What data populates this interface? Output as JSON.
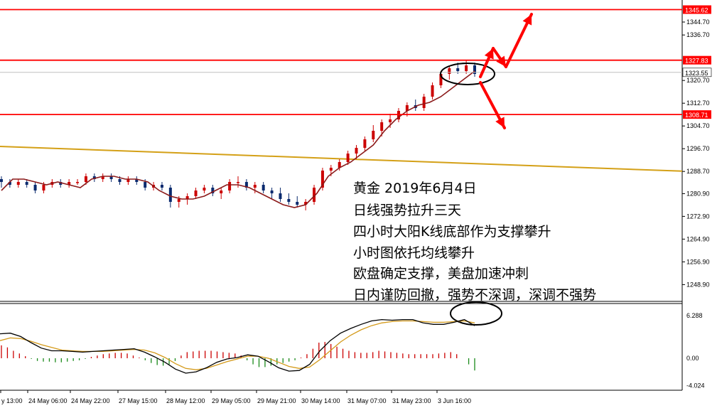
{
  "chart_data": [
    {
      "type": "candlestick",
      "instrument": "Gold",
      "ylim": [
        1244.8,
        1354.0
      ],
      "price_ticks": [
        "1336.70",
        "1320.70",
        "1312.70",
        "1304.70",
        "1296.70",
        "1288.70",
        "1280.90",
        "1272.90",
        "1264.90",
        "1256.90",
        "1248.90"
      ],
      "price_ticks_short": [
        "1344.70"
      ],
      "horizontal_levels": [
        {
          "label": "1345.62",
          "value": 1345.62,
          "color": "#ff0000"
        },
        {
          "label": "1327.83",
          "value": 1327.83,
          "color": "#ff0000"
        },
        {
          "label": "1308.71",
          "value": 1308.71,
          "color": "#ff0000"
        }
      ],
      "current_price": {
        "label": "1323.55",
        "value": 1323.55
      },
      "moving_averages": [
        {
          "role": "short",
          "color": "#8b1a1a",
          "values": [
            1282,
            1286,
            1286,
            1285,
            1284,
            1285,
            1284,
            1283,
            1286,
            1287,
            1287,
            1286,
            1286,
            1285,
            1282,
            1280,
            1279,
            1279,
            1280,
            1282,
            1284,
            1284,
            1283,
            1281,
            1279,
            1277,
            1276,
            1277,
            1281,
            1287,
            1290,
            1292,
            1295,
            1298,
            1303,
            1307,
            1310,
            1312,
            1313,
            1315,
            1318,
            1321,
            1324
          ]
        },
        {
          "role": "long",
          "color": "#d4a017",
          "values": [
            1297.5,
            1288.8
          ]
        }
      ],
      "candles": [
        [
          1286,
          1287,
          1283,
          1285
        ],
        [
          1285,
          1286,
          1283,
          1284
        ],
        [
          1284,
          1286,
          1283,
          1285
        ],
        [
          1285,
          1286,
          1283,
          1284
        ],
        [
          1284,
          1285,
          1281,
          1282
        ],
        [
          1282,
          1285,
          1281,
          1284
        ],
        [
          1284,
          1286,
          1283,
          1285
        ],
        [
          1285,
          1286,
          1283,
          1284
        ],
        [
          1284,
          1286,
          1283,
          1285
        ],
        [
          1285,
          1286,
          1284,
          1285
        ],
        [
          1285,
          1288,
          1284,
          1287
        ],
        [
          1287,
          1288,
          1285,
          1286
        ],
        [
          1286,
          1288,
          1285,
          1287
        ],
        [
          1287,
          1288,
          1285,
          1286
        ],
        [
          1286,
          1287,
          1284,
          1285
        ],
        [
          1285,
          1287,
          1284,
          1286
        ],
        [
          1286,
          1287,
          1284,
          1285
        ],
        [
          1285,
          1286,
          1282,
          1283
        ],
        [
          1283,
          1285,
          1282,
          1284
        ],
        [
          1284,
          1285,
          1282,
          1283
        ],
        [
          1283,
          1284,
          1276,
          1278
        ],
        [
          1278,
          1280,
          1276,
          1279
        ],
        [
          1279,
          1281,
          1277,
          1280
        ],
        [
          1280,
          1283,
          1279,
          1282
        ],
        [
          1282,
          1284,
          1281,
          1283
        ],
        [
          1283,
          1284,
          1280,
          1281
        ],
        [
          1281,
          1283,
          1279,
          1282
        ],
        [
          1282,
          1286,
          1281,
          1285
        ],
        [
          1285,
          1287,
          1283,
          1285
        ],
        [
          1285,
          1286,
          1282,
          1283
        ],
        [
          1283,
          1285,
          1281,
          1284
        ],
        [
          1284,
          1285,
          1281,
          1282
        ],
        [
          1282,
          1283,
          1279,
          1281
        ],
        [
          1281,
          1283,
          1278,
          1279
        ],
        [
          1279,
          1281,
          1277,
          1278
        ],
        [
          1278,
          1280,
          1276,
          1277
        ],
        [
          1277,
          1279,
          1275,
          1278
        ],
        [
          1278,
          1284,
          1277,
          1283
        ],
        [
          1283,
          1290,
          1282,
          1289
        ],
        [
          1289,
          1291,
          1287,
          1290
        ],
        [
          1290,
          1293,
          1289,
          1292
        ],
        [
          1292,
          1296,
          1291,
          1295
        ],
        [
          1295,
          1298,
          1293,
          1297
        ],
        [
          1297,
          1301,
          1296,
          1300
        ],
        [
          1300,
          1305,
          1299,
          1303
        ],
        [
          1303,
          1307,
          1301,
          1306
        ],
        [
          1306,
          1309,
          1304,
          1307
        ],
        [
          1307,
          1311,
          1306,
          1310
        ],
        [
          1310,
          1313,
          1308,
          1312
        ],
        [
          1312,
          1314,
          1310,
          1311
        ],
        [
          1311,
          1316,
          1310,
          1315
        ],
        [
          1315,
          1320,
          1314,
          1319
        ],
        [
          1319,
          1324,
          1318,
          1323
        ],
        [
          1323,
          1326,
          1321,
          1325
        ],
        [
          1325,
          1327,
          1323,
          1324
        ],
        [
          1324,
          1328,
          1323,
          1326
        ],
        [
          1326,
          1327,
          1322,
          1323
        ]
      ],
      "annotations": [
        "黄金 2019年6月4日",
        "日线强势拉升三天",
        "四小时大阳K线底部作为支撑攀升",
        "小时图依托均线攀升",
        "欧盘确定支撑，美盘加速冲刺",
        "日内谨防回撤，强势不深调，深调不强势"
      ],
      "x_tick_labels": [
        "y 13:00",
        "24 May 06:00",
        "24 May 22:00",
        "27 May 15:00",
        "28 May 12:00",
        "29 May 05:00",
        "29 May 21:00",
        "30 May 14:00",
        "31 May 07:00",
        "31 May 23:00",
        "3 Jun 16:00"
      ]
    },
    {
      "type": "macd",
      "ylim": [
        -4.024,
        6.288
      ],
      "y_tick_labels": [
        "6.288",
        "0.00",
        "-4.024"
      ],
      "histogram": [
        1.9,
        1.6,
        1.1,
        0.7,
        0.3,
        -0.1,
        -0.4,
        -0.5,
        -0.5,
        -0.6,
        -0.6,
        -0.5,
        -0.4,
        -0.3,
        -0.1,
        0.2,
        0.4,
        0.6,
        0.7,
        0.8,
        0.8,
        0.7,
        0.4,
        0.1,
        -0.3,
        -0.7,
        -1.0,
        -1.1,
        -0.9,
        -0.4,
        0.4,
        0.9,
        1.0,
        1.1,
        1.1,
        1.1,
        1.0,
        0.9,
        0.8,
        0.7,
        0.4,
        -0.3,
        -0.9,
        -1.3,
        -1.3,
        -1.1,
        -0.9,
        -0.7,
        -0.5,
        -0.3,
        0.1,
        0.6,
        1.4,
        2.3,
        2.4,
        2.1,
        1.7,
        1.4,
        1.1,
        0.9,
        0.8,
        0.8,
        0.9,
        1.1,
        1.0,
        0.9,
        0.8,
        0.7,
        0.6,
        0.6,
        0.6,
        0.6,
        0.6,
        0.7,
        0.8,
        0.9,
        0.6,
        0.0,
        -0.9,
        -1.8
      ],
      "macd_line": [
        3.6,
        3.7,
        3.2,
        2.3,
        1.5,
        1.1,
        1.1,
        1.0,
        0.9,
        1.0,
        1.1,
        1.2,
        1.3,
        1.4,
        0.9,
        0.2,
        -0.6,
        -1.6,
        -2.2,
        -2.0,
        -1.4,
        -0.6,
        -0.1,
        0.1,
        0.5,
        0.3,
        -0.5,
        -1.4,
        -1.9,
        -1.8,
        -0.9,
        1.1,
        2.6,
        3.7,
        4.4,
        5.0,
        5.5,
        5.7,
        5.6,
        5.7,
        5.7,
        5.2,
        5.0,
        5.0,
        5.3,
        5.7,
        4.8
      ],
      "signal_line": [
        2.6,
        3.0,
        2.9,
        2.5,
        2.0,
        1.6,
        1.2,
        1.1,
        1.0,
        1.0,
        1.0,
        1.1,
        1.2,
        1.3,
        1.2,
        0.8,
        0.1,
        -0.8,
        -1.5,
        -1.7,
        -1.5,
        -1.0,
        -0.5,
        -0.1,
        0.3,
        0.3,
        0.0,
        -0.6,
        -1.2,
        -1.5,
        -1.3,
        -0.2,
        1.1,
        2.4,
        3.4,
        4.2,
        4.8,
        5.2,
        5.4,
        5.5,
        5.5,
        5.4,
        5.3,
        5.3,
        5.4,
        5.5,
        5.2
      ]
    }
  ]
}
